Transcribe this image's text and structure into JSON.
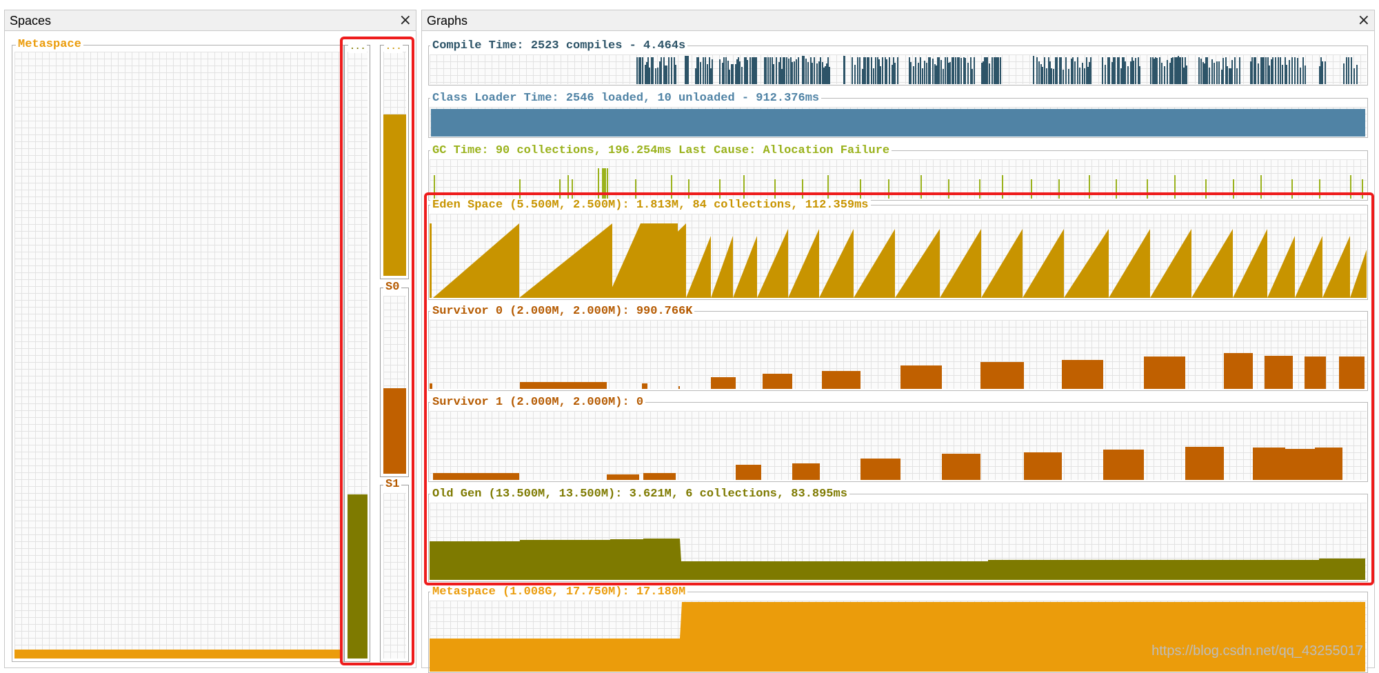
{
  "spaces_panel": {
    "title": "Spaces",
    "close_glyph": "×",
    "metaspace_label": "Metaspace",
    "metaspace_fill": 0.015,
    "old_label": "...",
    "old_fill": 0.27,
    "eden_label": "...",
    "eden_fill": 0.72,
    "s0_label": "S0",
    "s0_fill": 0.48,
    "s1_label": "S1",
    "s1_fill": 0.0
  },
  "graphs_panel": {
    "title": "Graphs",
    "close_glyph": "×",
    "compile_label": "Compile Time: 2523 compiles - 4.464s",
    "classloader_label": "Class Loader Time: 2546 loaded, 10 unloaded - 912.376ms",
    "gc_label": "GC Time: 90 collections, 196.254ms Last Cause: Allocation Failure",
    "eden_label": "Eden Space (5.500M, 2.500M): 1.813M, 84 collections, 112.359ms",
    "s0_label": "Survivor 0 (2.000M, 2.000M): 990.766K",
    "s1_label": "Survivor 1 (2.000M, 2.000M): 0",
    "old_label": "Old Gen (13.500M, 13.500M): 3.621M, 6 collections, 83.895ms",
    "meta_label": "Metaspace (1.008G, 17.750M): 17.180M"
  },
  "colors": {
    "compile": "#2d5468",
    "classloader": "#5083a5",
    "gc": "#9ab21c",
    "eden": "#c89400",
    "survivor": "#c06000",
    "old": "#7e7a00",
    "metaspace": "#eb9c0b",
    "highlight": "#ee1c1c"
  },
  "watermark": "https://blog.csdn.net/qq_43255017"
}
